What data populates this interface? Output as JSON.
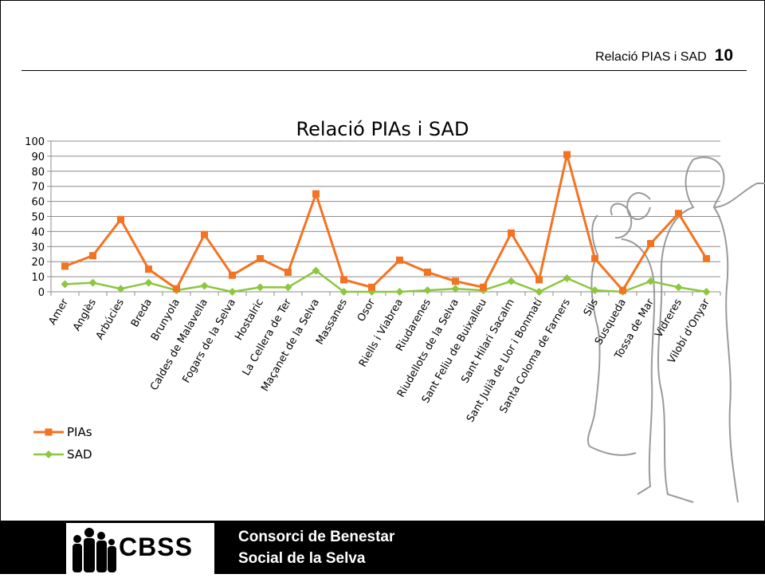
{
  "header": {
    "title": "Relació PIAS i SAD",
    "page_number": "10"
  },
  "footer": {
    "logo_text": "CBSS",
    "org_line1": "Consorci de Benestar",
    "org_line2": "Social de la Selva"
  },
  "colors": {
    "pias": "#F47321",
    "sad": "#8DC63F",
    "grid": "#8C8C8C"
  },
  "chart_data": {
    "type": "line",
    "title": "Relació PIAs i SAD",
    "categories": [
      "Amer",
      "Anglès",
      "Arbúcies",
      "Breda",
      "Brunyola",
      "Caldes de Malavella",
      "Fogars de la Selva",
      "Hostalric",
      "La Cellera de Ter",
      "Maçanet de la Selva",
      "Massanes",
      "Osor",
      "Riells i Viabrea",
      "Riudarenes",
      "Riudellots de la Selva",
      "Sant Feliu de Buixalleu",
      "Sant Hilari Sacalm",
      "Sant Julià de Llor i Bonmatí",
      "Santa Coloma de Farners",
      "Sils",
      "Susqueda",
      "Tossa de Mar",
      "Vidreres",
      "Vilobí d'Onyar"
    ],
    "series": [
      {
        "name": "PIAs",
        "values": [
          17,
          24,
          48,
          15,
          2,
          38,
          11,
          22,
          13,
          65,
          8,
          3,
          21,
          13,
          7,
          3,
          39,
          8,
          91,
          22,
          1,
          32,
          52,
          22
        ]
      },
      {
        "name": "SAD",
        "values": [
          5,
          6,
          2,
          6,
          1,
          4,
          0,
          3,
          3,
          14,
          0,
          0,
          0,
          1,
          2,
          1,
          7,
          0,
          9,
          1,
          0,
          7,
          3,
          0
        ]
      }
    ],
    "ylim": [
      0,
      100
    ],
    "yticks": [
      0,
      10,
      20,
      30,
      40,
      50,
      60,
      70,
      80,
      90,
      100
    ],
    "grid": true,
    "legend": "bottom-left"
  }
}
